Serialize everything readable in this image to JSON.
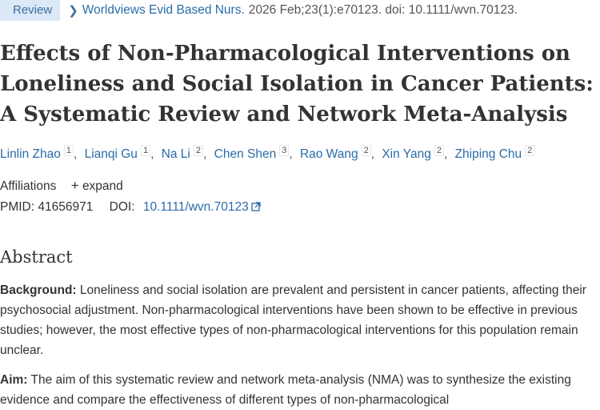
{
  "header": {
    "badge": "Review",
    "journal": "Worldviews Evid Based Nurs.",
    "citation": "2026 Feb;23(1):e70123. doi: 10.1111/wvn.70123."
  },
  "article": {
    "title": "Effects of Non-Pharmacological Interventions on Loneliness and Social Isolation in Cancer Patients: A Systematic Review and Network Meta-Analysis",
    "authors": [
      {
        "name": "Linlin Zhao",
        "aff": "1"
      },
      {
        "name": "Lianqi Gu",
        "aff": "1"
      },
      {
        "name": "Na Li",
        "aff": "2"
      },
      {
        "name": "Chen Shen",
        "aff": "3"
      },
      {
        "name": "Rao Wang",
        "aff": "2"
      },
      {
        "name": "Xin Yang",
        "aff": "2"
      },
      {
        "name": "Zhiping Chu",
        "aff": "2"
      }
    ],
    "affiliations_label": "Affiliations",
    "expand_label": "expand",
    "pmid_label": "PMID:",
    "pmid": "41656971",
    "doi_label": "DOI:",
    "doi": "10.1111/wvn.70123"
  },
  "abstract": {
    "heading": "Abstract",
    "background_label": "Background:",
    "background_text": "Loneliness and social isolation are prevalent and persistent in cancer patients, affecting their psychosocial adjustment. Non-pharmacological interventions have been shown to be effective in previous studies; however, the most effective types of non-pharmacological interventions for this population remain unclear.",
    "aim_label": "Aim:",
    "aim_text": "The aim of this systematic review and network meta-analysis (NMA) was to synthesize the existing evidence and compare the effectiveness of different types of non-pharmacological"
  },
  "icons": {
    "chevron": "chevron-right-icon",
    "plus": "plus-icon",
    "external": "external-link-icon"
  }
}
